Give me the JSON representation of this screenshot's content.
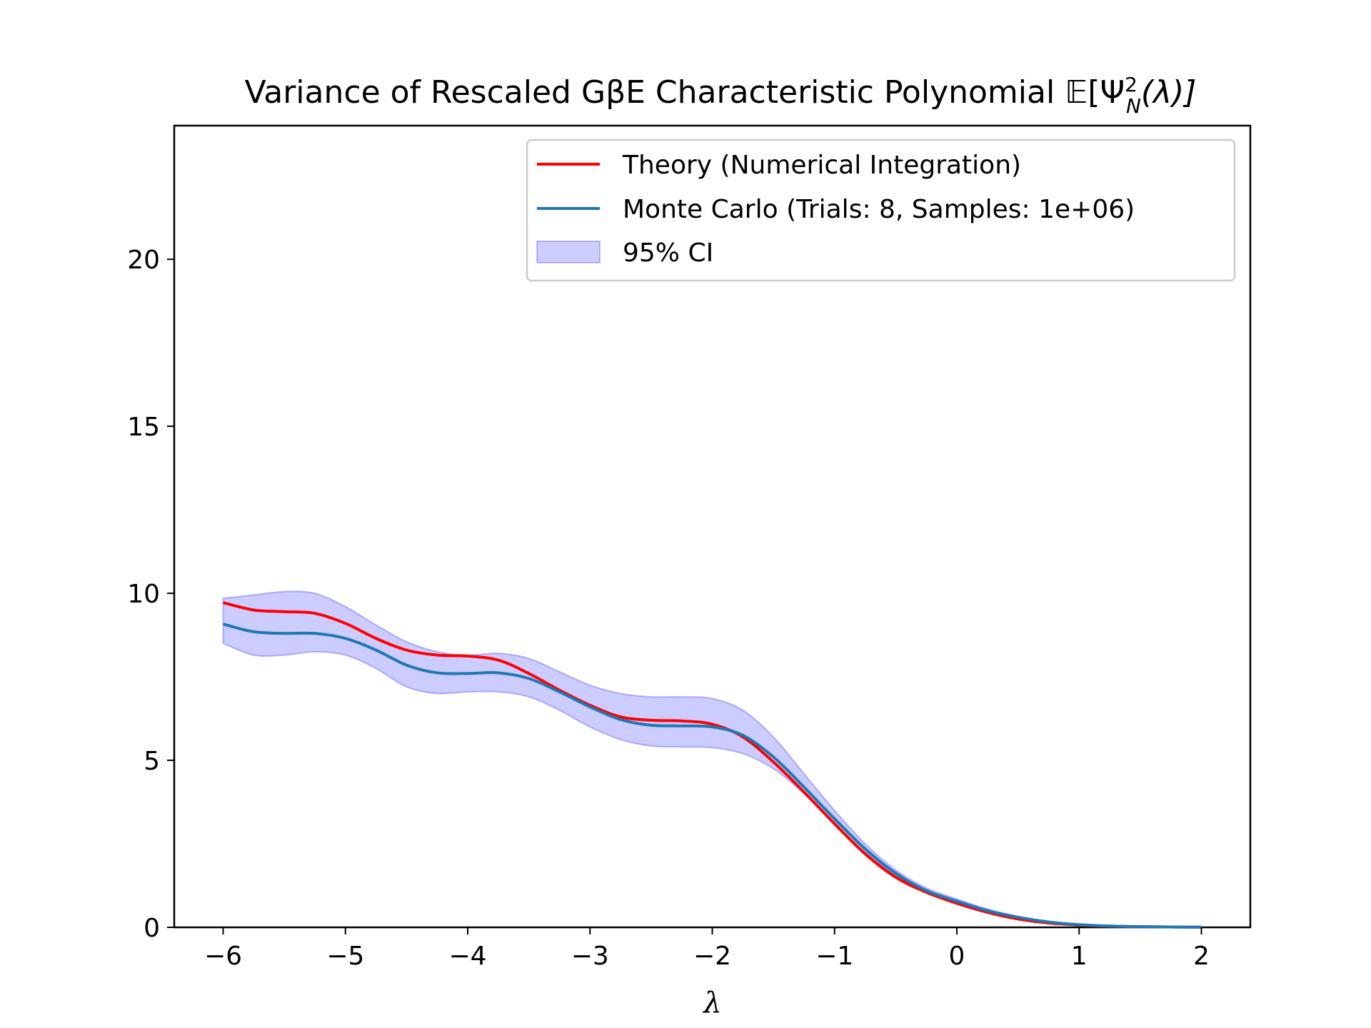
{
  "chart_data": {
    "type": "line",
    "title": "Variance of Rescaled GβE Characteristic Polynomial 𝔼[Ψ²ₙ(λ)]",
    "title_parts": {
      "main": "Variance of Rescaled GβE Characteristic Polynomial ",
      "bb_e": "𝔼",
      "bracket_open": "[Ψ",
      "sup": "2",
      "sub": "N",
      "arg": "(λ)]"
    },
    "xlabel": "λ",
    "ylabel": "",
    "xlim": [
      -6.4,
      2.4
    ],
    "ylim": [
      0,
      24
    ],
    "xticks": [
      -6,
      -5,
      -4,
      -3,
      -2,
      -1,
      0,
      1,
      2
    ],
    "xtick_labels": [
      "−6",
      "−5",
      "−4",
      "−3",
      "−2",
      "−1",
      "0",
      "1",
      "2"
    ],
    "yticks": [
      0,
      5,
      10,
      15,
      20
    ],
    "ytick_labels": [
      "0",
      "5",
      "10",
      "15",
      "20"
    ],
    "grid": false,
    "legend_position": "upper-right",
    "x": [
      -6.0,
      -5.75,
      -5.5,
      -5.25,
      -5.0,
      -4.75,
      -4.5,
      -4.25,
      -4.0,
      -3.75,
      -3.5,
      -3.25,
      -3.0,
      -2.75,
      -2.5,
      -2.25,
      -2.0,
      -1.75,
      -1.5,
      -1.25,
      -1.0,
      -0.75,
      -0.5,
      -0.25,
      0.0,
      0.25,
      0.5,
      0.75,
      1.0,
      1.25,
      1.5,
      1.75,
      2.0
    ],
    "series": [
      {
        "name": "Theory (Numerical Integration)",
        "color": "#ff0000",
        "values": [
          9.72,
          9.5,
          9.45,
          9.4,
          9.1,
          8.65,
          8.3,
          8.15,
          8.12,
          8.0,
          7.6,
          7.1,
          6.65,
          6.3,
          6.2,
          6.18,
          6.08,
          5.7,
          4.95,
          4.05,
          3.1,
          2.2,
          1.5,
          1.05,
          0.72,
          0.45,
          0.25,
          0.13,
          0.07,
          0.035,
          0.02,
          0.01,
          0.005
        ]
      },
      {
        "name": "Monte Carlo (Trials: 8, Samples: 1e+06)",
        "color": "#1f77b4",
        "values": [
          9.08,
          8.85,
          8.8,
          8.8,
          8.65,
          8.3,
          7.85,
          7.62,
          7.6,
          7.62,
          7.45,
          7.05,
          6.6,
          6.22,
          6.05,
          6.03,
          6.0,
          5.75,
          5.1,
          4.2,
          3.25,
          2.35,
          1.62,
          1.1,
          0.78,
          0.5,
          0.3,
          0.16,
          0.08,
          0.04,
          0.02,
          0.01,
          0.005
        ]
      }
    ],
    "ci": {
      "name": "95% CI",
      "color": "#0000ff",
      "lower": [
        8.5,
        8.15,
        8.15,
        8.25,
        8.15,
        7.75,
        7.2,
        7.0,
        7.05,
        7.05,
        6.9,
        6.5,
        6.0,
        5.62,
        5.43,
        5.4,
        5.38,
        5.2,
        4.75,
        4.0,
        3.1,
        2.25,
        1.55,
        1.05,
        0.72,
        0.45,
        0.26,
        0.14,
        0.07,
        0.035,
        0.018,
        0.009,
        0.004
      ],
      "upper": [
        9.85,
        9.95,
        10.05,
        10.0,
        9.6,
        9.05,
        8.55,
        8.25,
        8.15,
        8.2,
        8.05,
        7.65,
        7.25,
        7.0,
        6.9,
        6.9,
        6.85,
        6.5,
        5.7,
        4.6,
        3.5,
        2.5,
        1.72,
        1.18,
        0.85,
        0.55,
        0.33,
        0.18,
        0.09,
        0.045,
        0.022,
        0.011,
        0.006
      ]
    }
  }
}
